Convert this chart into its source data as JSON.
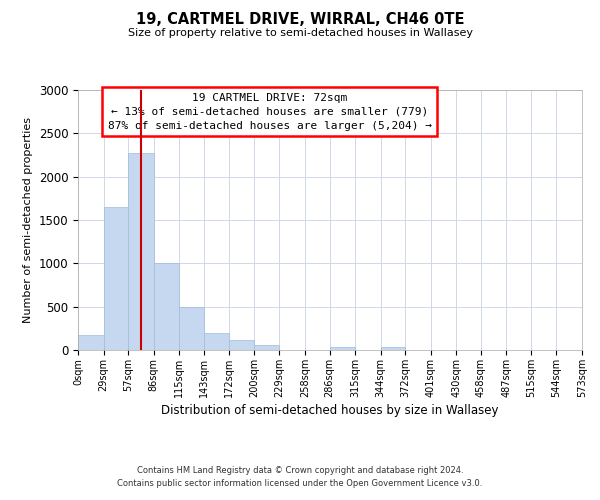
{
  "title": "19, CARTMEL DRIVE, WIRRAL, CH46 0TE",
  "subtitle": "Size of property relative to semi-detached houses in Wallasey",
  "xlabel": "Distribution of semi-detached houses by size in Wallasey",
  "ylabel": "Number of semi-detached properties",
  "footer_line1": "Contains HM Land Registry data © Crown copyright and database right 2024.",
  "footer_line2": "Contains public sector information licensed under the Open Government Licence v3.0.",
  "annotation_title": "19 CARTMEL DRIVE: 72sqm",
  "annotation_line1": "← 13% of semi-detached houses are smaller (779)",
  "annotation_line2": "87% of semi-detached houses are larger (5,204) →",
  "bar_color": "#c5d8f0",
  "bar_edge_color": "#a0bcd8",
  "vline_color": "#cc0000",
  "vline_x": 72,
  "ylim": [
    0,
    3000
  ],
  "bin_edges": [
    0,
    29,
    57,
    86,
    115,
    143,
    172,
    200,
    229,
    258,
    286,
    315,
    344,
    372,
    401,
    430,
    458,
    487,
    515,
    544,
    573
  ],
  "bin_labels": [
    "0sqm",
    "29sqm",
    "57sqm",
    "86sqm",
    "115sqm",
    "143sqm",
    "172sqm",
    "200sqm",
    "229sqm",
    "258sqm",
    "286sqm",
    "315sqm",
    "344sqm",
    "372sqm",
    "401sqm",
    "430sqm",
    "458sqm",
    "487sqm",
    "515sqm",
    "544sqm",
    "573sqm"
  ],
  "bar_heights": [
    175,
    1650,
    2275,
    1000,
    500,
    200,
    110,
    55,
    0,
    0,
    30,
    0,
    35,
    0,
    0,
    0,
    0,
    0,
    0,
    0
  ],
  "background_color": "#ffffff",
  "grid_color": "#d0d8e8"
}
